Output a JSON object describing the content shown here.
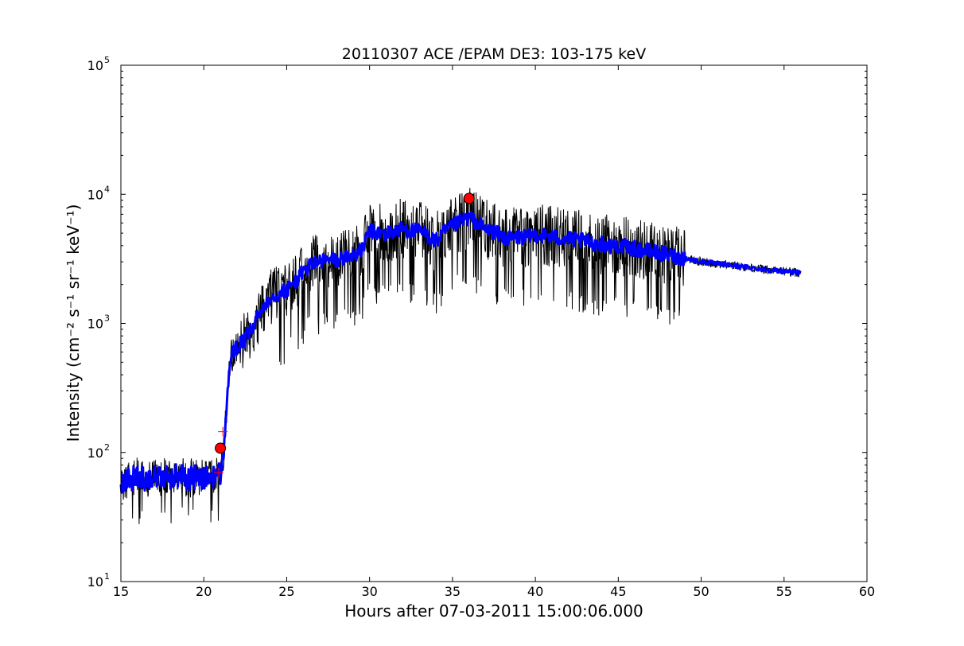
{
  "chart_data": {
    "type": "line",
    "title": "20110307 ACE /EPAM DE3: 103-175 keV",
    "xlabel": "Hours after 07-03-2011 15:00:06.000",
    "ylabel": "Intensity (cm⁻² s⁻¹ sr⁻¹ keV⁻¹)",
    "xlim": [
      15,
      60
    ],
    "ylim": [
      10,
      100000
    ],
    "yscale": "log",
    "grid": false,
    "x_ticks": [
      "15",
      "20",
      "25",
      "30",
      "35",
      "40",
      "45",
      "50",
      "55",
      "60"
    ],
    "y_ticks": [
      {
        "base": "10",
        "exp": "1",
        "value": 10
      },
      {
        "base": "10",
        "exp": "2",
        "value": 100
      },
      {
        "base": "10",
        "exp": "3",
        "value": 1000
      },
      {
        "base": "10",
        "exp": "4",
        "value": 10000
      },
      {
        "base": "10",
        "exp": "5",
        "value": 100000
      }
    ],
    "series": [
      {
        "color": "#000000",
        "style": "raw",
        "x": [
          15.0,
          15.5,
          16.0,
          16.5,
          17.0,
          17.5,
          18.0,
          18.5,
          19.0,
          19.5,
          20.0,
          20.5,
          21.0,
          21.2,
          21.4,
          21.6,
          22.0,
          22.5,
          23.0,
          23.5,
          24.0,
          24.5,
          25.0,
          25.5,
          26.0,
          26.5,
          27.0,
          27.5,
          28.0,
          28.5,
          29.0,
          29.5,
          30.0,
          30.5,
          31.0,
          31.5,
          32.0,
          32.5,
          33.0,
          33.5,
          34.0,
          34.5,
          35.0,
          35.5,
          36.0,
          36.5,
          37.0,
          37.5,
          38.0,
          38.5,
          39.0,
          39.5,
          40.0,
          40.5,
          41.0,
          41.5,
          42.0,
          42.5,
          43.0,
          43.5,
          44.0,
          44.5,
          45.0,
          45.5,
          46.0,
          46.5,
          47.0,
          47.5,
          48.0,
          48.5,
          49.0,
          49.5,
          50.0,
          50.5,
          51.0,
          51.5,
          52.0,
          52.5,
          53.0,
          53.5,
          54.0,
          54.5,
          55.0,
          55.5,
          56.0
        ],
        "y": [
          60,
          62,
          65,
          63,
          66,
          64,
          65,
          67,
          63,
          64,
          62,
          66,
          68,
          100,
          250,
          550,
          650,
          750,
          950,
          1300,
          1600,
          1700,
          1800,
          2100,
          2500,
          2900,
          3000,
          3100,
          3100,
          3200,
          3400,
          3600,
          5200,
          5000,
          4900,
          5200,
          5400,
          5200,
          5200,
          4800,
          4300,
          5100,
          5600,
          6200,
          6600,
          6000,
          5300,
          5100,
          4700,
          4500,
          4700,
          4600,
          4900,
          4800,
          4700,
          4600,
          4500,
          4400,
          4300,
          4200,
          4100,
          4000,
          4000,
          3900,
          3800,
          3700,
          3600,
          3500,
          3400,
          3300,
          3200,
          3100,
          3000,
          2950,
          2900,
          2850,
          2800,
          2750,
          2700,
          2650,
          2600,
          2550,
          2550,
          2500,
          2450
        ]
      },
      {
        "color": "#0000ff",
        "style": "smoothed",
        "x": [
          15.0,
          15.5,
          16.0,
          16.5,
          17.0,
          17.5,
          18.0,
          18.5,
          19.0,
          19.5,
          20.0,
          20.5,
          21.0,
          21.2,
          21.4,
          21.6,
          22.0,
          22.5,
          23.0,
          23.5,
          24.0,
          24.5,
          25.0,
          25.5,
          26.0,
          26.5,
          27.0,
          27.5,
          28.0,
          28.5,
          29.0,
          29.5,
          30.0,
          30.5,
          31.0,
          31.5,
          32.0,
          32.5,
          33.0,
          33.5,
          34.0,
          34.5,
          35.0,
          35.5,
          36.0,
          36.5,
          37.0,
          37.5,
          38.0,
          38.5,
          39.0,
          39.5,
          40.0,
          40.5,
          41.0,
          41.5,
          42.0,
          42.5,
          43.0,
          43.5,
          44.0,
          44.5,
          45.0,
          45.5,
          46.0,
          46.5,
          47.0,
          47.5,
          48.0,
          48.5,
          49.0,
          49.5,
          50.0,
          50.5,
          51.0,
          51.5,
          52.0,
          52.5,
          53.0,
          53.5,
          54.0,
          54.5,
          55.0,
          55.5,
          56.0
        ],
        "y": [
          60,
          62,
          65,
          63,
          66,
          64,
          65,
          67,
          63,
          64,
          62,
          66,
          68,
          100,
          250,
          550,
          650,
          750,
          950,
          1300,
          1600,
          1700,
          1800,
          2100,
          2500,
          2900,
          3000,
          3100,
          3100,
          3200,
          3400,
          3600,
          5200,
          5000,
          4900,
          5200,
          5400,
          5200,
          5200,
          4800,
          4300,
          5100,
          5600,
          6200,
          6600,
          6000,
          5300,
          5100,
          4700,
          4500,
          4700,
          4600,
          4900,
          4800,
          4700,
          4600,
          4500,
          4400,
          4300,
          4200,
          4100,
          4000,
          4000,
          3900,
          3800,
          3700,
          3600,
          3500,
          3400,
          3300,
          3200,
          3100,
          3000,
          2950,
          2900,
          2850,
          2800,
          2750,
          2700,
          2650,
          2600,
          2550,
          2550,
          2500,
          2450
        ]
      }
    ],
    "markers": [
      {
        "type": "circle",
        "color": "#ff0000",
        "x": 21.0,
        "y": 108
      },
      {
        "type": "circle",
        "color": "#ff0000",
        "x": 36.0,
        "y": 9300
      },
      {
        "type": "plus",
        "color": "#ff0000",
        "x": 20.9,
        "y": 70
      },
      {
        "type": "plus",
        "color": "#ff0000",
        "x": 21.15,
        "y": 145
      }
    ]
  }
}
